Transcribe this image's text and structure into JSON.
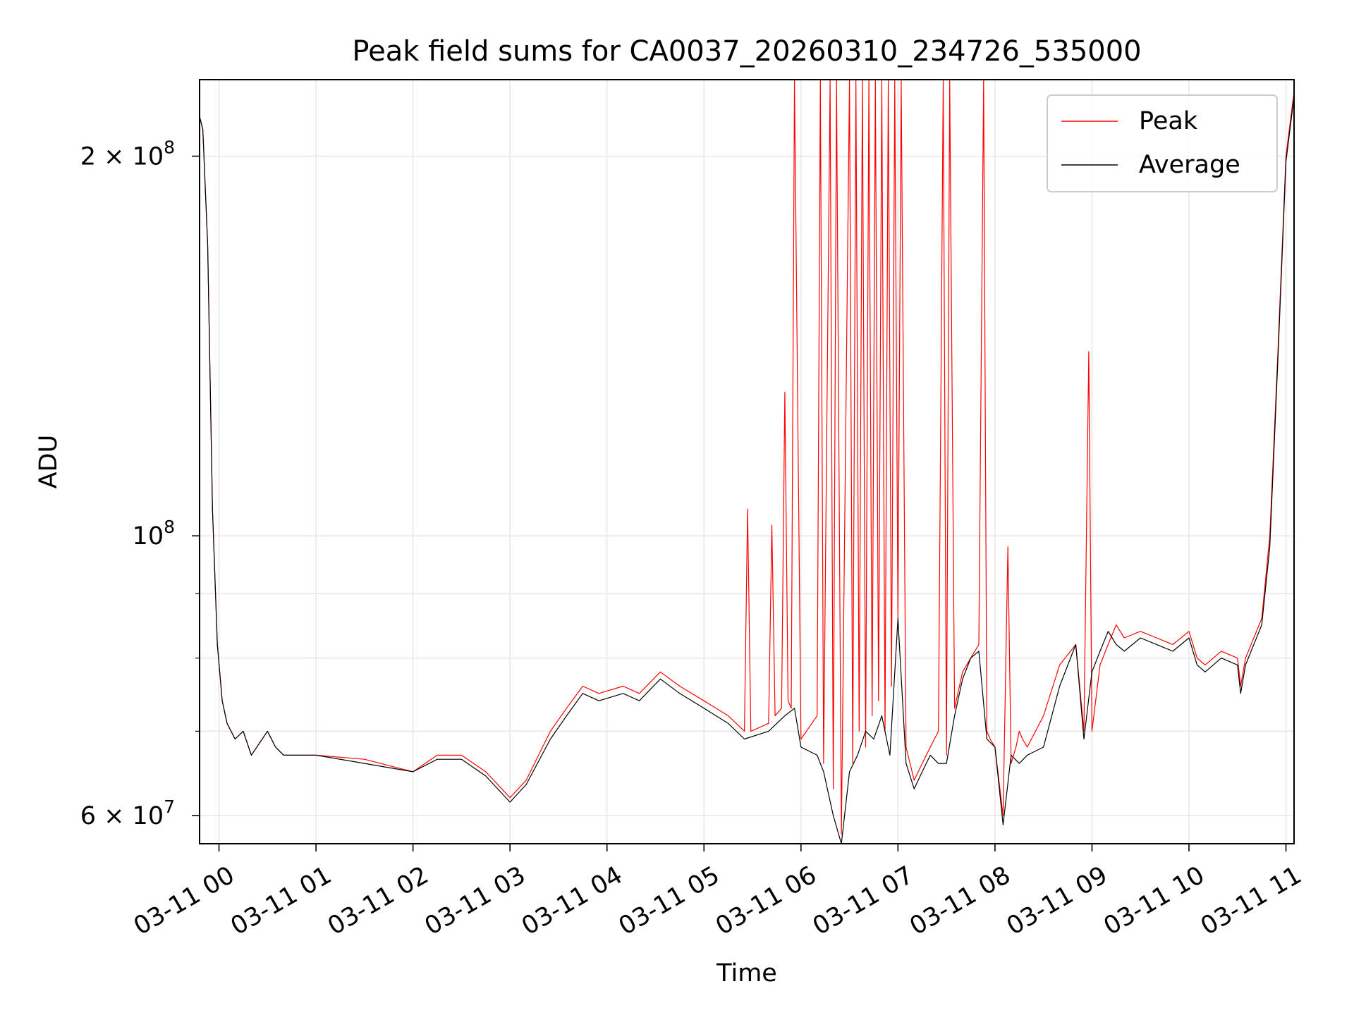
{
  "chart_data": {
    "type": "line",
    "title": "Peak field sums for CA0037_20260310_234726_535000",
    "xlabel": "Time",
    "ylabel": "ADU",
    "yscale": "log",
    "ylim": [
      57000000,
      230000000
    ],
    "xlim": [
      "2026-03-10 23:48",
      "2026-03-11 11:05"
    ],
    "grid": true,
    "legend_position": "upper right",
    "x_ticks": [
      {
        "value": "2026-03-11 00:00",
        "label": "03-11 00"
      },
      {
        "value": "2026-03-11 01:00",
        "label": "03-11 01"
      },
      {
        "value": "2026-03-11 02:00",
        "label": "03-11 02"
      },
      {
        "value": "2026-03-11 03:00",
        "label": "03-11 03"
      },
      {
        "value": "2026-03-11 04:00",
        "label": "03-11 04"
      },
      {
        "value": "2026-03-11 05:00",
        "label": "03-11 05"
      },
      {
        "value": "2026-03-11 06:00",
        "label": "03-11 06"
      },
      {
        "value": "2026-03-11 07:00",
        "label": "03-11 07"
      },
      {
        "value": "2026-03-11 08:00",
        "label": "03-11 08"
      },
      {
        "value": "2026-03-11 09:00",
        "label": "03-11 09"
      },
      {
        "value": "2026-03-11 10:00",
        "label": "03-11 10"
      },
      {
        "value": "2026-03-11 11:00",
        "label": "03-11 11"
      }
    ],
    "y_ticks": [
      {
        "value": 60000000,
        "label": "6 × 10",
        "exp": "7"
      },
      {
        "value": 100000000,
        "label": "10",
        "exp": "8"
      },
      {
        "value": 200000000,
        "label": "2 × 10",
        "exp": "8"
      }
    ],
    "y_minor_ticks": [
      70000000,
      80000000,
      90000000
    ],
    "series": [
      {
        "name": "Peak",
        "color": "#ff0000",
        "x": [
          "2026-03-10 23:48",
          "2026-03-10 23:50",
          "2026-03-10 23:53",
          "2026-03-10 23:56",
          "2026-03-10 23:59",
          "2026-03-11 00:02",
          "2026-03-11 00:05",
          "2026-03-11 00:10",
          "2026-03-11 00:15",
          "2026-03-11 00:20",
          "2026-03-11 00:30",
          "2026-03-11 00:35",
          "2026-03-11 00:40",
          "2026-03-11 00:45",
          "2026-03-11 01:00",
          "2026-03-11 01:30",
          "2026-03-11 02:00",
          "2026-03-11 02:15",
          "2026-03-11 02:30",
          "2026-03-11 02:45",
          "2026-03-11 03:00",
          "2026-03-11 03:10",
          "2026-03-11 03:25",
          "2026-03-11 03:35",
          "2026-03-11 03:45",
          "2026-03-11 03:55",
          "2026-03-11 04:10",
          "2026-03-11 04:20",
          "2026-03-11 04:33",
          "2026-03-11 04:45",
          "2026-03-11 05:00",
          "2026-03-11 05:15",
          "2026-03-11 05:25",
          "2026-03-11 05:27",
          "2026-03-11 05:29",
          "2026-03-11 05:40",
          "2026-03-11 05:42",
          "2026-03-11 05:44",
          "2026-03-11 05:48",
          "2026-03-11 05:50",
          "2026-03-11 05:52",
          "2026-03-11 05:54",
          "2026-03-11 05:56",
          "2026-03-11 06:00",
          "2026-03-11 06:10",
          "2026-03-11 06:12",
          "2026-03-11 06:14",
          "2026-03-11 06:18",
          "2026-03-11 06:20",
          "2026-03-11 06:22",
          "2026-03-11 06:25",
          "2026-03-11 06:30",
          "2026-03-11 06:32",
          "2026-03-11 06:34",
          "2026-03-11 06:36",
          "2026-03-11 06:38",
          "2026-03-11 06:40",
          "2026-03-11 06:42",
          "2026-03-11 06:44",
          "2026-03-11 06:46",
          "2026-03-11 06:48",
          "2026-03-11 06:50",
          "2026-03-11 06:52",
          "2026-03-11 06:54",
          "2026-03-11 06:56",
          "2026-03-11 06:58",
          "2026-03-11 07:00",
          "2026-03-11 07:02",
          "2026-03-11 07:05",
          "2026-03-11 07:10",
          "2026-03-11 07:15",
          "2026-03-11 07:20",
          "2026-03-11 07:25",
          "2026-03-11 07:28",
          "2026-03-11 07:30",
          "2026-03-11 07:32",
          "2026-03-11 07:35",
          "2026-03-11 07:40",
          "2026-03-11 07:45",
          "2026-03-11 07:50",
          "2026-03-11 07:53",
          "2026-03-11 07:55",
          "2026-03-11 07:57",
          "2026-03-11 08:00",
          "2026-03-11 08:05",
          "2026-03-11 08:08",
          "2026-03-11 08:10",
          "2026-03-11 08:13",
          "2026-03-11 08:15",
          "2026-03-11 08:17",
          "2026-03-11 08:20",
          "2026-03-11 08:30",
          "2026-03-11 08:40",
          "2026-03-11 08:50",
          "2026-03-11 08:55",
          "2026-03-11 08:58",
          "2026-03-11 09:00",
          "2026-03-11 09:05",
          "2026-03-11 09:10",
          "2026-03-11 09:15",
          "2026-03-11 09:20",
          "2026-03-11 09:30",
          "2026-03-11 09:40",
          "2026-03-11 09:50",
          "2026-03-11 10:00",
          "2026-03-11 10:05",
          "2026-03-11 10:10",
          "2026-03-11 10:20",
          "2026-03-11 10:30",
          "2026-03-11 10:32",
          "2026-03-11 10:35",
          "2026-03-11 10:45",
          "2026-03-11 10:50",
          "2026-03-11 10:55",
          "2026-03-11 11:00",
          "2026-03-11 11:05"
        ],
        "y": [
          215000000,
          210000000,
          170000000,
          105000000,
          82000000,
          74000000,
          71000000,
          69000000,
          70000000,
          67000000,
          70000000,
          68000000,
          67000000,
          67000000,
          67000000,
          66500000,
          65000000,
          67000000,
          67000000,
          65000000,
          62000000,
          64000000,
          70000000,
          73000000,
          76000000,
          75000000,
          76000000,
          75000000,
          78000000,
          76000000,
          74000000,
          72000000,
          70000000,
          105000000,
          70000000,
          71000000,
          102000000,
          72000000,
          73000000,
          130000000,
          74000000,
          73000000,
          230000000,
          69000000,
          72000000,
          230000000,
          66000000,
          230000000,
          63000000,
          230000000,
          58000000,
          230000000,
          66000000,
          230000000,
          70000000,
          230000000,
          68000000,
          230000000,
          72000000,
          230000000,
          74000000,
          230000000,
          70000000,
          230000000,
          76000000,
          230000000,
          86000000,
          230000000,
          68000000,
          64000000,
          66000000,
          68000000,
          70000000,
          230000000,
          67000000,
          230000000,
          73000000,
          78000000,
          80000000,
          82000000,
          230000000,
          70000000,
          69000000,
          68000000,
          60000000,
          98000000,
          66000000,
          68000000,
          70000000,
          69000000,
          68000000,
          72000000,
          79000000,
          82000000,
          70000000,
          140000000,
          70000000,
          79000000,
          82000000,
          85000000,
          83000000,
          84000000,
          83000000,
          82000000,
          84000000,
          80000000,
          79000000,
          81000000,
          80000000,
          76000000,
          80000000,
          86000000,
          100000000,
          140000000,
          200000000,
          225000000
        ],
        "line_width": 1
      },
      {
        "name": "Average",
        "color": "#000000",
        "x": [
          "2026-03-10 23:48",
          "2026-03-10 23:50",
          "2026-03-10 23:53",
          "2026-03-10 23:56",
          "2026-03-10 23:59",
          "2026-03-11 00:02",
          "2026-03-11 00:05",
          "2026-03-11 00:10",
          "2026-03-11 00:15",
          "2026-03-11 00:20",
          "2026-03-11 00:30",
          "2026-03-11 00:35",
          "2026-03-11 00:40",
          "2026-03-11 00:45",
          "2026-03-11 01:00",
          "2026-03-11 01:30",
          "2026-03-11 02:00",
          "2026-03-11 02:15",
          "2026-03-11 02:30",
          "2026-03-11 02:45",
          "2026-03-11 03:00",
          "2026-03-11 03:10",
          "2026-03-11 03:25",
          "2026-03-11 03:35",
          "2026-03-11 03:45",
          "2026-03-11 03:55",
          "2026-03-11 04:10",
          "2026-03-11 04:20",
          "2026-03-11 04:33",
          "2026-03-11 04:45",
          "2026-03-11 05:00",
          "2026-03-11 05:15",
          "2026-03-11 05:25",
          "2026-03-11 05:40",
          "2026-03-11 05:50",
          "2026-03-11 05:56",
          "2026-03-11 06:00",
          "2026-03-11 06:10",
          "2026-03-11 06:14",
          "2026-03-11 06:20",
          "2026-03-11 06:25",
          "2026-03-11 06:30",
          "2026-03-11 06:35",
          "2026-03-11 06:40",
          "2026-03-11 06:45",
          "2026-03-11 06:50",
          "2026-03-11 06:55",
          "2026-03-11 07:00",
          "2026-03-11 07:05",
          "2026-03-11 07:10",
          "2026-03-11 07:15",
          "2026-03-11 07:20",
          "2026-03-11 07:25",
          "2026-03-11 07:30",
          "2026-03-11 07:35",
          "2026-03-11 07:40",
          "2026-03-11 07:45",
          "2026-03-11 07:50",
          "2026-03-11 07:55",
          "2026-03-11 08:00",
          "2026-03-11 08:05",
          "2026-03-11 08:10",
          "2026-03-11 08:15",
          "2026-03-11 08:20",
          "2026-03-11 08:30",
          "2026-03-11 08:40",
          "2026-03-11 08:50",
          "2026-03-11 08:55",
          "2026-03-11 09:00",
          "2026-03-11 09:05",
          "2026-03-11 09:10",
          "2026-03-11 09:15",
          "2026-03-11 09:20",
          "2026-03-11 09:30",
          "2026-03-11 09:40",
          "2026-03-11 09:50",
          "2026-03-11 10:00",
          "2026-03-11 10:05",
          "2026-03-11 10:10",
          "2026-03-11 10:20",
          "2026-03-11 10:30",
          "2026-03-11 10:32",
          "2026-03-11 10:35",
          "2026-03-11 10:45",
          "2026-03-11 10:50",
          "2026-03-11 10:55",
          "2026-03-11 11:00",
          "2026-03-11 11:05"
        ],
        "y": [
          215000000,
          210000000,
          170000000,
          105000000,
          82000000,
          74000000,
          71000000,
          69000000,
          70000000,
          67000000,
          70000000,
          68000000,
          67000000,
          67000000,
          67000000,
          66000000,
          65000000,
          66500000,
          66500000,
          64500000,
          61500000,
          63500000,
          69000000,
          72000000,
          75000000,
          74000000,
          75000000,
          74000000,
          77000000,
          75000000,
          73000000,
          71000000,
          69000000,
          70000000,
          72000000,
          73000000,
          68000000,
          67000000,
          65000000,
          60000000,
          57000000,
          65000000,
          67000000,
          70000000,
          69000000,
          72000000,
          67000000,
          86000000,
          66000000,
          63000000,
          65000000,
          67000000,
          66000000,
          66000000,
          72000000,
          77000000,
          80000000,
          81000000,
          69000000,
          68000000,
          59000000,
          67000000,
          66000000,
          67000000,
          68000000,
          76000000,
          82000000,
          69000000,
          78000000,
          81000000,
          84000000,
          82000000,
          81000000,
          83000000,
          82000000,
          81000000,
          83000000,
          79000000,
          78000000,
          80000000,
          79000000,
          75000000,
          79000000,
          85000000,
          98000000,
          138000000,
          198000000,
          223000000
        ],
        "line_width": 1
      }
    ]
  }
}
